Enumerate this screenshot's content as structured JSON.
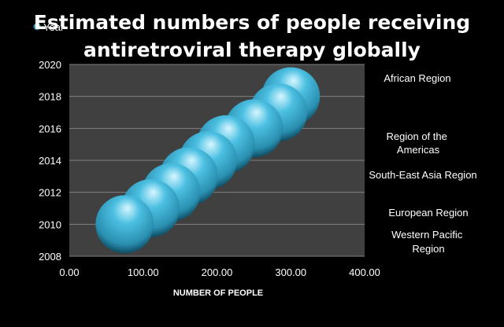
{
  "chart_data": {
    "type": "bubble",
    "title_lines": [
      "Estimated numbers of people receiving",
      "antiretroviral therapy globally"
    ],
    "legend_label": "Year",
    "xlabel": "NUMBER OF PEOPLE",
    "xlim": [
      0,
      400
    ],
    "ylim": [
      2008,
      2020
    ],
    "x_ticks": [
      "0.00",
      "100.00",
      "200.00",
      "300.00",
      "400.00"
    ],
    "y_ticks": [
      "2008",
      "2010",
      "2012",
      "2014",
      "2016",
      "2018",
      "2020"
    ],
    "points": [
      {
        "x": 75,
        "y": 2010
      },
      {
        "x": 110,
        "y": 2011
      },
      {
        "x": 138,
        "y": 2012
      },
      {
        "x": 162,
        "y": 2013
      },
      {
        "x": 188,
        "y": 2014
      },
      {
        "x": 212,
        "y": 2015
      },
      {
        "x": 250,
        "y": 2016
      },
      {
        "x": 283,
        "y": 2017
      },
      {
        "x": 300,
        "y": 2018
      }
    ],
    "side_labels": [
      "African Region",
      "Region of the Americas",
      "South-East Asia Region",
      "European Region",
      "Western Pacific Region"
    ],
    "colors": {
      "bubble": "#2fa3c6",
      "bubble_light": "#bfeefb",
      "bubble_dark": "#0d4f66",
      "plot_bg": "#404040",
      "grid": "#808080"
    }
  }
}
